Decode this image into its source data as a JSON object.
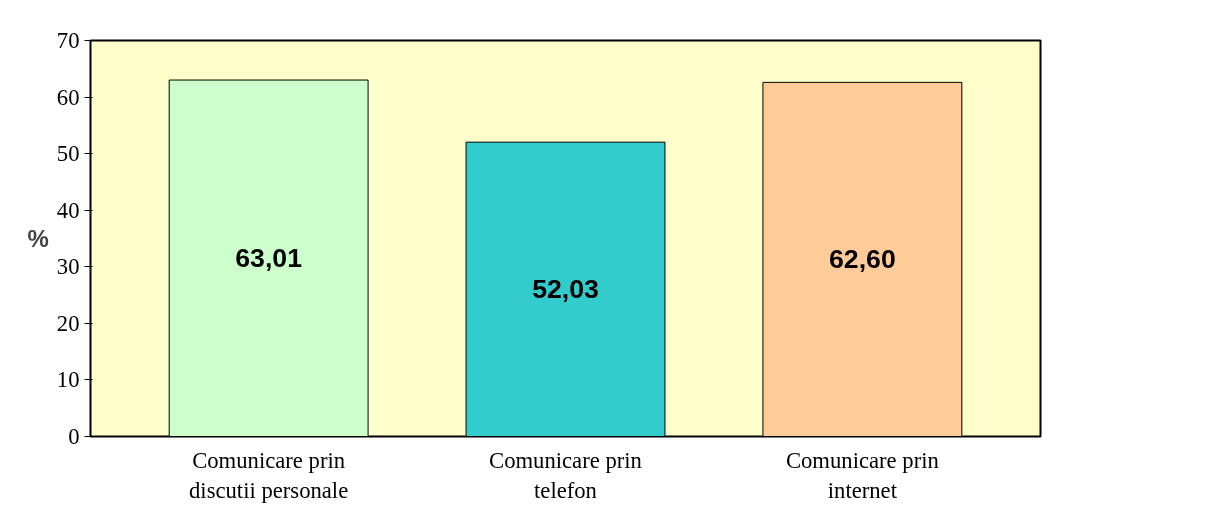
{
  "chart_data": {
    "type": "bar",
    "ylabel": "%",
    "categories": [
      "Comunicare prin discutii personale",
      "Comunicare prin telefon",
      "Comunicare prin internet"
    ],
    "values": [
      63.01,
      52.03,
      62.6
    ],
    "colors": [
      "#ccffcc",
      "#33cccc",
      "#ffcc99"
    ],
    "value_labels": [
      "63,01",
      "52,03",
      "62,60"
    ],
    "ylim": [
      0,
      70
    ],
    "yticks": [
      0,
      10,
      20,
      30,
      40,
      50,
      60,
      70
    ],
    "grid": false
  }
}
